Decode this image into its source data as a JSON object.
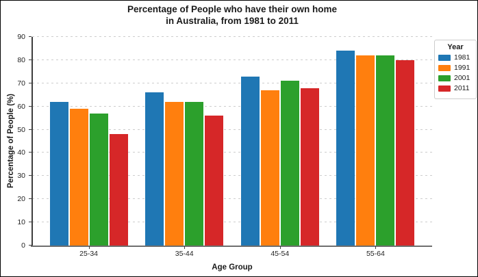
{
  "chart_data": {
    "type": "bar",
    "title": "Percentage of People who have their own home\nin Australia, from 1981 to 2011",
    "xlabel": "Age Group",
    "ylabel": "Percentage of People (%)",
    "categories": [
      "25-34",
      "35-44",
      "45-54",
      "55-64"
    ],
    "series": [
      {
        "name": "1981",
        "color": "#1f77b4",
        "values": [
          62,
          66,
          73,
          84
        ]
      },
      {
        "name": "1991",
        "color": "#ff7f0e",
        "values": [
          59,
          62,
          67,
          82
        ]
      },
      {
        "name": "2001",
        "color": "#2ca02c",
        "values": [
          57,
          62,
          71,
          82
        ]
      },
      {
        "name": "2011",
        "color": "#d62728",
        "values": [
          48,
          56,
          68,
          80
        ]
      }
    ],
    "ylim": [
      0,
      90
    ],
    "yticks": [
      0,
      10,
      20,
      30,
      40,
      50,
      60,
      70,
      80,
      90
    ],
    "grid": "horizontal-dashed",
    "legend": {
      "title": "Year",
      "position": "outside-right-top"
    }
  },
  "colors": {
    "grid": "#cccccc",
    "axis": "#3c3c3c",
    "baseline": "#6e6e6e",
    "legend_border": "#cccccc",
    "background": "#ffffff",
    "frame_border": "#000000"
  }
}
